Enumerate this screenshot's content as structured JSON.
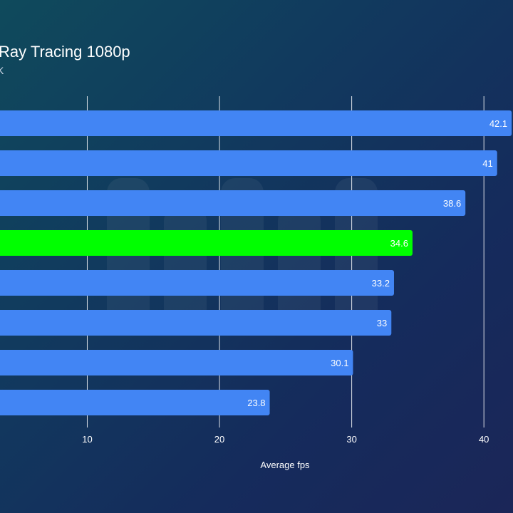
{
  "chart_data": {
    "type": "bar",
    "orientation": "horizontal",
    "title": "Ray Tracing 1080p",
    "subtitle": "K",
    "xlabel": "Average fps",
    "ylabel": "",
    "xlim": [
      3.4,
      42.2
    ],
    "xticks": [
      10,
      20,
      30,
      40
    ],
    "grid": true,
    "values": [
      42.1,
      41,
      38.6,
      34.6,
      33.2,
      33,
      30.1,
      23.8
    ],
    "value_labels": [
      "42.1",
      "41",
      "38.6",
      "34.6",
      "33.2",
      "33",
      "30.1",
      "23.8"
    ],
    "bar_colors": [
      "#4285f4",
      "#4285f4",
      "#4285f4",
      "#00ff00",
      "#4285f4",
      "#4285f4",
      "#4285f4",
      "#4285f4"
    ],
    "value_label_colors": [
      "#ffffff",
      "#ffffff",
      "#ffffff",
      "#1a1a1a",
      "#ffffff",
      "#ffffff",
      "#ffffff",
      "#ffffff"
    ]
  },
  "colors": {
    "bar": "#4285f4",
    "highlight": "#00ff00",
    "gridline": "#ffffff"
  }
}
